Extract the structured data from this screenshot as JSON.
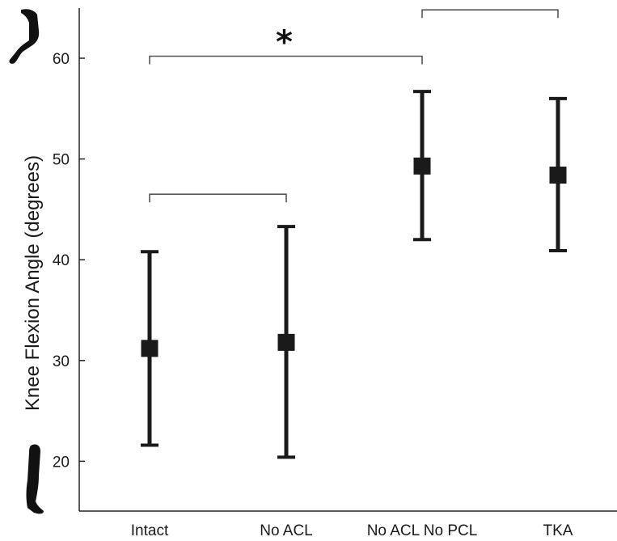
{
  "chart_data": {
    "type": "scatter",
    "title": "",
    "xlabel": "",
    "ylabel": "Knee Flexion Angle (degrees)",
    "ylim": [
      15,
      65
    ],
    "yticks": [
      20,
      30,
      40,
      50,
      60
    ],
    "categories": [
      "Intact",
      "No ACL",
      "No ACL No PCL",
      "TKA"
    ],
    "series": [
      {
        "values": [
          31.2,
          31.8,
          49.3,
          48.4
        ],
        "error_low": [
          21.6,
          20.4,
          42.0,
          40.9
        ],
        "error_high": [
          40.8,
          43.3,
          56.7,
          56.0
        ]
      }
    ],
    "annotations": [
      {
        "type": "bracket",
        "from": "Intact",
        "to": "No ACL",
        "y": 46.5,
        "label": ""
      },
      {
        "type": "bracket",
        "from": "Intact",
        "to": "No ACL No PCL",
        "y": 60.2,
        "label": "*"
      },
      {
        "type": "bracket",
        "from": "No ACL No PCL",
        "to": "TKA",
        "y": 64.8,
        "label": ""
      }
    ],
    "grid": false,
    "legend": "none",
    "icons": [
      "leg-flexed-icon",
      "leg-extended-icon"
    ],
    "marker_color": "#1a1a1a"
  }
}
